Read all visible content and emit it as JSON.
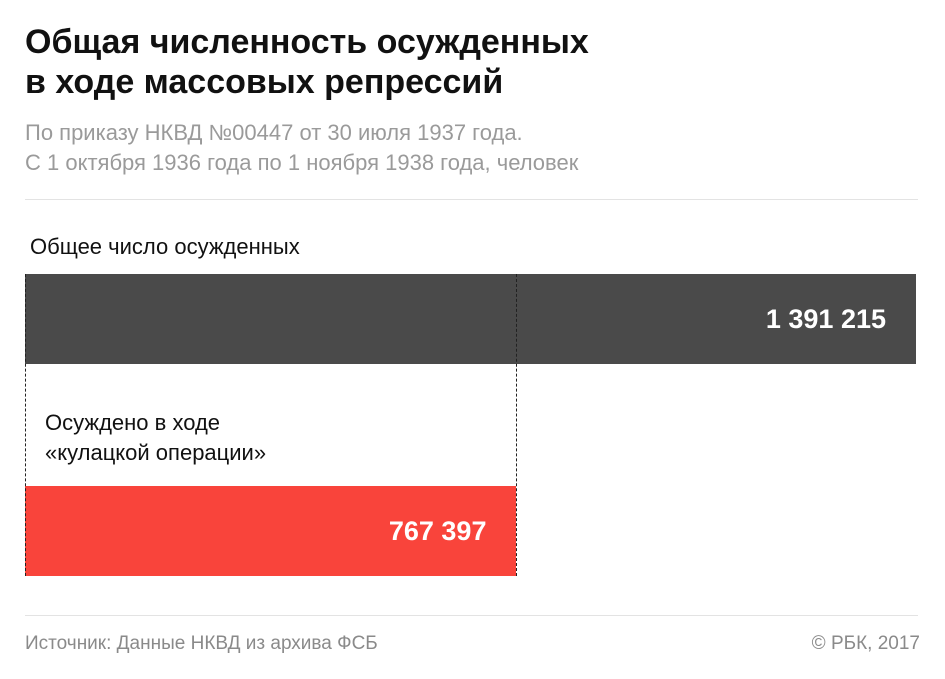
{
  "chart_data": {
    "type": "bar",
    "orientation": "horizontal",
    "title": "Общая численность осужденных\nв ходе массовых репрессий",
    "subtitle": "По приказу НКВД №00447 от 30 июля 1937 года.\nС 1 октября 1936 года по 1 ноября 1938 года, человек",
    "categories": [
      "Общее число осужденных",
      "Осуждено в ходе\n«кулацкой операции»"
    ],
    "values": [
      1391215,
      767397
    ],
    "value_labels": [
      "1 391 215",
      "767 397"
    ],
    "colors": [
      "#4a4a4a",
      "#f9443b"
    ],
    "xlim": [
      0,
      1391215
    ],
    "source": "Источник: Данные НКВД из архива ФСБ",
    "credit": "© РБК, 2017"
  }
}
